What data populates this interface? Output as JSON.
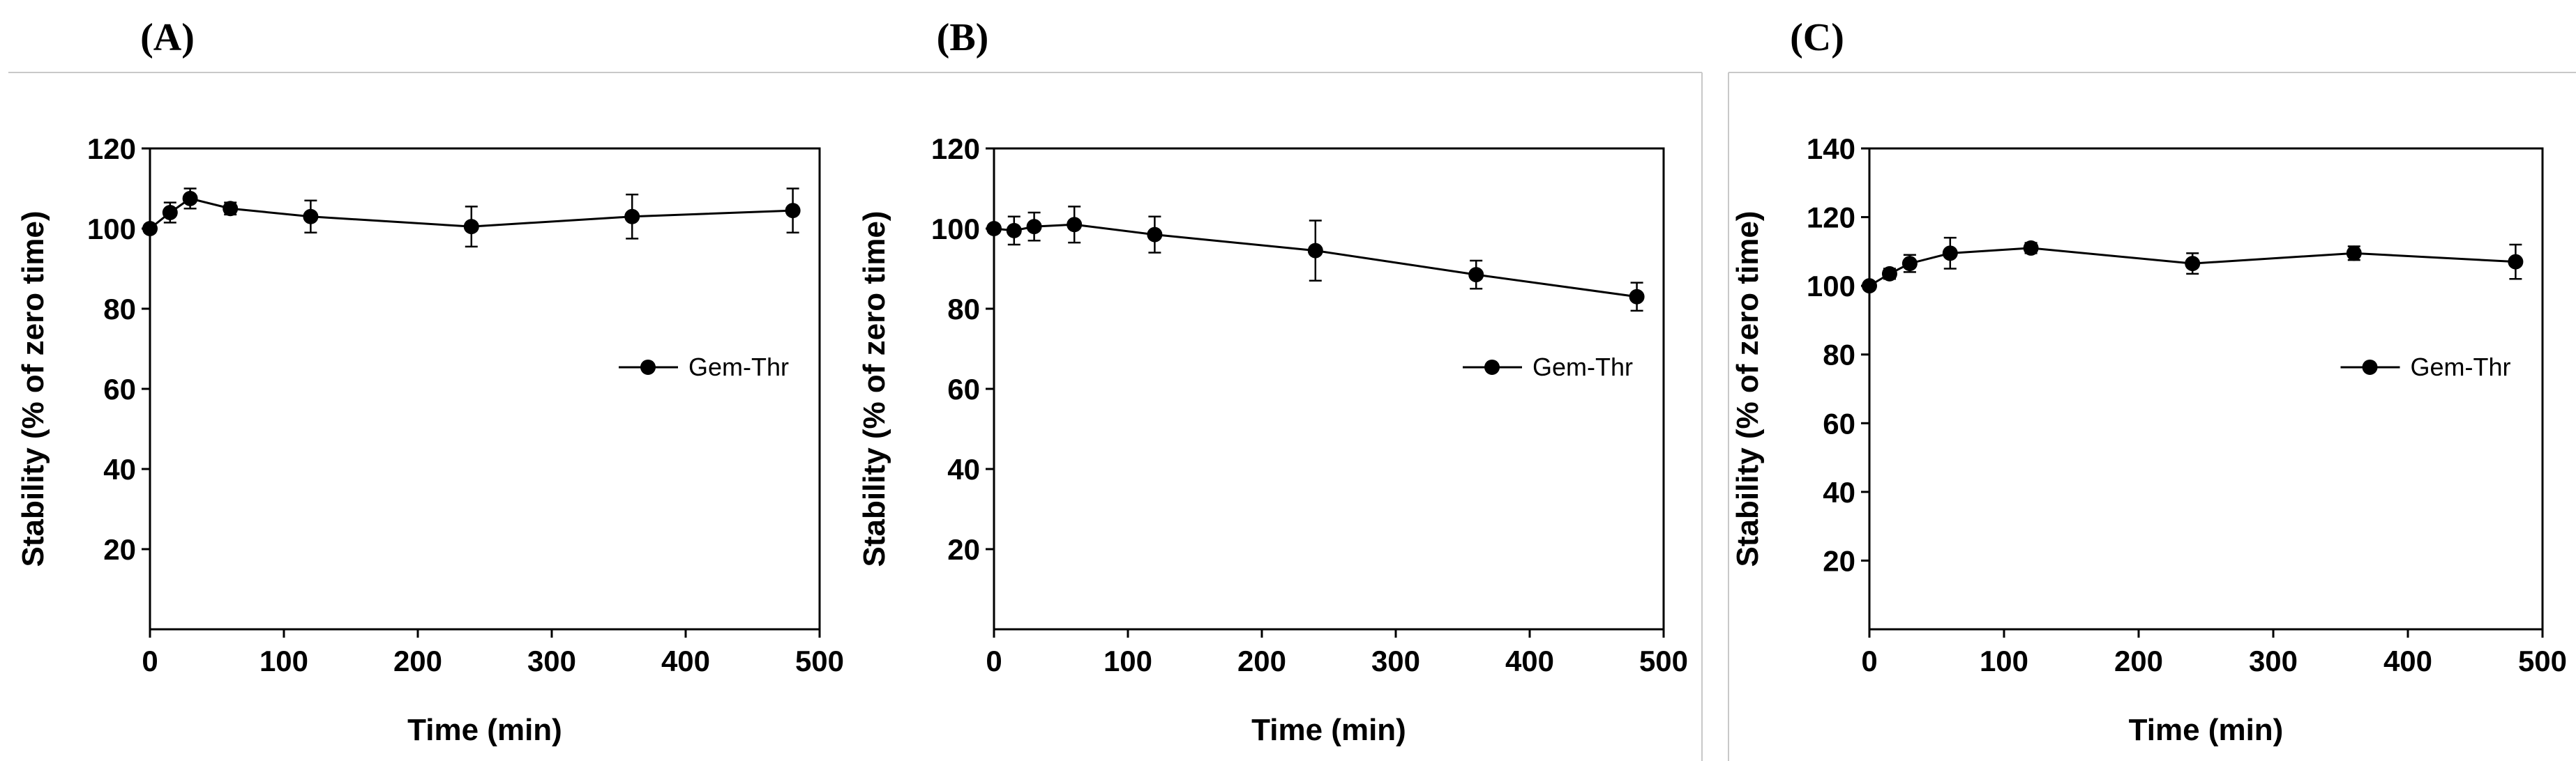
{
  "chart_data": [
    {
      "type": "line",
      "panel_label": "(A)",
      "xlabel": "Time (min)",
      "ylabel": "Stability (% of zero time)",
      "xlim": [
        0,
        500
      ],
      "ylim": [
        0,
        120
      ],
      "xticks": [
        0,
        100,
        200,
        300,
        400,
        500
      ],
      "yticks": [
        20,
        40,
        60,
        80,
        100,
        120
      ],
      "legend_position": "center-right",
      "series": [
        {
          "name": "Gem-Thr",
          "x": [
            0,
            15,
            30,
            60,
            120,
            240,
            360,
            480
          ],
          "y": [
            100,
            104,
            107.5,
            105,
            103,
            100.5,
            103,
            104.5
          ],
          "err": [
            1,
            2.5,
            2.5,
            1.5,
            4,
            5,
            5.5,
            5.5
          ]
        }
      ]
    },
    {
      "type": "line",
      "panel_label": "(B)",
      "xlabel": "Time (min)",
      "ylabel": "Stability (% of zero time)",
      "xlim": [
        0,
        500
      ],
      "ylim": [
        0,
        120
      ],
      "xticks": [
        0,
        100,
        200,
        300,
        400,
        500
      ],
      "yticks": [
        20,
        40,
        60,
        80,
        100,
        120
      ],
      "legend_position": "center-right",
      "series": [
        {
          "name": "Gem-Thr",
          "x": [
            0,
            15,
            30,
            60,
            120,
            240,
            360,
            480
          ],
          "y": [
            100,
            99.5,
            100.5,
            101,
            98.5,
            94.5,
            88.5,
            83
          ],
          "err": [
            1,
            3.5,
            3.5,
            4.5,
            4.5,
            7.5,
            3.5,
            3.5
          ]
        }
      ]
    },
    {
      "type": "line",
      "panel_label": "(C)",
      "xlabel": "Time (min)",
      "ylabel": "Stability (% of zero time)",
      "xlim": [
        0,
        500
      ],
      "ylim": [
        0,
        140
      ],
      "xticks": [
        0,
        100,
        200,
        300,
        400,
        500
      ],
      "yticks": [
        20,
        40,
        60,
        80,
        100,
        120,
        140
      ],
      "legend_position": "center-right",
      "series": [
        {
          "name": "Gem-Thr",
          "x": [
            0,
            15,
            30,
            60,
            120,
            240,
            360,
            480
          ],
          "y": [
            100,
            103.5,
            106.5,
            109.5,
            111,
            106.5,
            109.5,
            107
          ],
          "err": [
            1,
            1.5,
            2.5,
            4.5,
            1.5,
            3,
            2,
            5
          ]
        }
      ]
    }
  ]
}
